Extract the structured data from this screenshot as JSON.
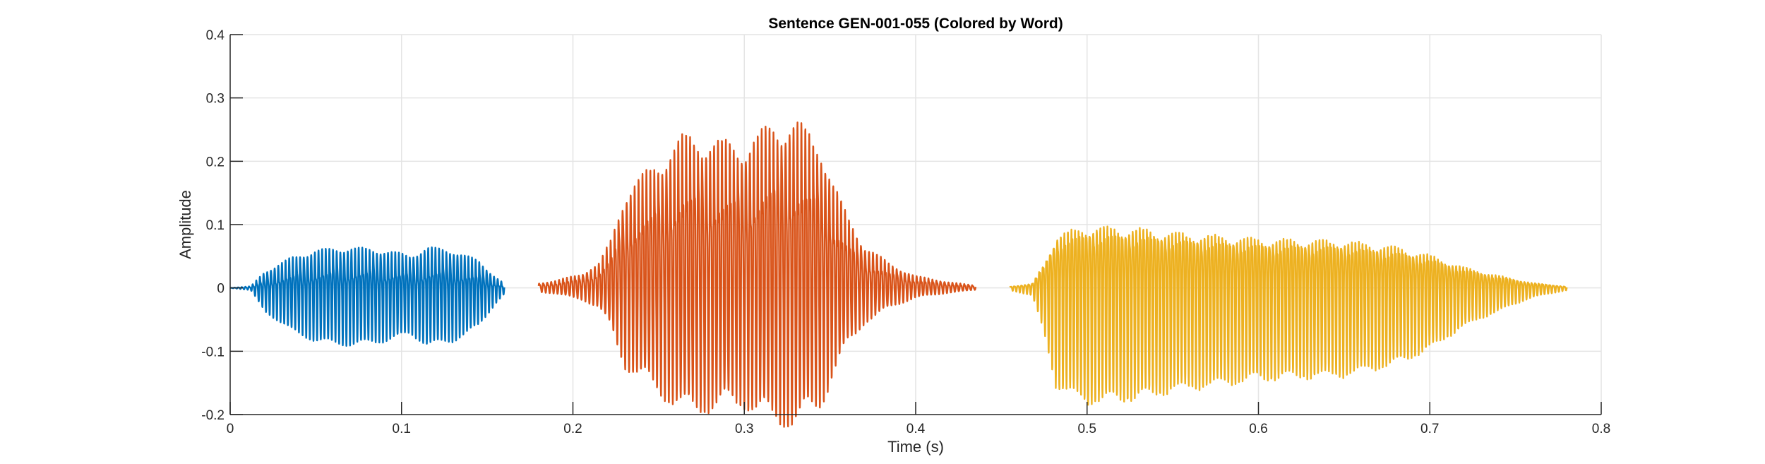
{
  "chart_data": {
    "type": "line",
    "title": "Sentence GEN-001-055 (Colored by Word)",
    "xlabel": "Time (s)",
    "ylabel": "Amplitude",
    "xlim": [
      0,
      0.8
    ],
    "ylim": [
      -0.2,
      0.4
    ],
    "xticks": [
      0,
      0.1,
      0.2,
      0.3,
      0.4,
      0.5,
      0.6,
      0.7,
      0.8
    ],
    "xtick_labels": [
      "0",
      "0.1",
      "0.2",
      "0.3",
      "0.4",
      "0.5",
      "0.6",
      "0.7",
      "0.8"
    ],
    "yticks": [
      -0.2,
      -0.1,
      0,
      0.1,
      0.2,
      0.3,
      0.4
    ],
    "ytick_labels": [
      "-0.2",
      "-0.1",
      "0",
      "0.1",
      "0.2",
      "0.3",
      "0.4"
    ],
    "grid": true,
    "series": [
      {
        "color": "#0072BD",
        "t_start": 0.0,
        "t_end": 0.16,
        "envelope": [
          [
            0.0,
            0.0
          ],
          [
            0.012,
            0.003
          ],
          [
            0.02,
            0.03
          ],
          [
            0.035,
            0.055
          ],
          [
            0.05,
            0.07
          ],
          [
            0.07,
            0.075
          ],
          [
            0.09,
            0.07
          ],
          [
            0.105,
            0.06
          ],
          [
            0.115,
            0.075
          ],
          [
            0.13,
            0.07
          ],
          [
            0.145,
            0.05
          ],
          [
            0.155,
            0.02
          ],
          [
            0.16,
            0.008
          ]
        ],
        "neg_scale": 1.15,
        "cycles": 75
      },
      {
        "color": "#D95319",
        "t_start": 0.18,
        "t_end": 0.435,
        "envelope": [
          [
            0.18,
            0.01
          ],
          [
            0.19,
            0.015
          ],
          [
            0.205,
            0.03
          ],
          [
            0.215,
            0.05
          ],
          [
            0.222,
            0.1
          ],
          [
            0.23,
            0.2
          ],
          [
            0.245,
            0.25
          ],
          [
            0.265,
            0.32
          ],
          [
            0.28,
            0.31
          ],
          [
            0.3,
            0.3
          ],
          [
            0.315,
            0.34
          ],
          [
            0.33,
            0.35
          ],
          [
            0.345,
            0.3
          ],
          [
            0.352,
            0.22
          ],
          [
            0.36,
            0.15
          ],
          [
            0.37,
            0.09
          ],
          [
            0.385,
            0.05
          ],
          [
            0.4,
            0.025
          ],
          [
            0.42,
            0.012
          ],
          [
            0.435,
            0.005
          ]
        ],
        "neg_scale": 0.55,
        "cycles": 110
      },
      {
        "color": "#EDB120",
        "t_start": 0.455,
        "t_end": 0.78,
        "envelope": [
          [
            0.455,
            0.003
          ],
          [
            0.468,
            0.01
          ],
          [
            0.475,
            0.06
          ],
          [
            0.482,
            0.13
          ],
          [
            0.5,
            0.15
          ],
          [
            0.53,
            0.145
          ],
          [
            0.55,
            0.135
          ],
          [
            0.6,
            0.12
          ],
          [
            0.65,
            0.115
          ],
          [
            0.68,
            0.1
          ],
          [
            0.7,
            0.08
          ],
          [
            0.72,
            0.05
          ],
          [
            0.74,
            0.03
          ],
          [
            0.76,
            0.012
          ],
          [
            0.78,
            0.003
          ]
        ],
        "neg_scale": 1.1,
        "cycles": 155
      }
    ]
  }
}
